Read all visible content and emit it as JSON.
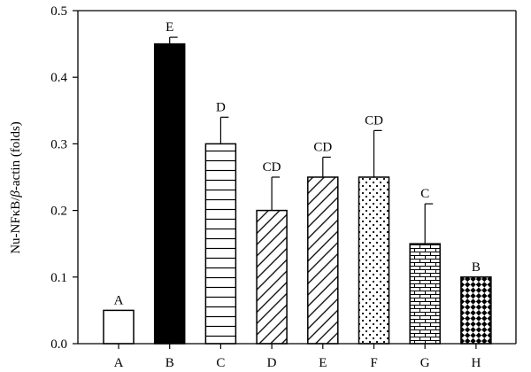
{
  "chart_data": {
    "type": "bar",
    "title": "",
    "xlabel": "",
    "ylabel_prefix": "Nu-NFκB/",
    "ylabel_beta": "β",
    "ylabel_suffix": "-actin (folds)",
    "ylim": [
      0,
      0.5
    ],
    "yticks": [
      "0.0",
      "0.1",
      "0.2",
      "0.3",
      "0.4",
      "0.5"
    ],
    "grid": false,
    "categories": [
      "A",
      "B",
      "C",
      "D",
      "E",
      "F",
      "G",
      "H"
    ],
    "values": [
      0.05,
      0.45,
      0.3,
      0.2,
      0.25,
      0.25,
      0.15,
      0.1
    ],
    "errors": [
      0,
      0.01,
      0.04,
      0.05,
      0.03,
      0.07,
      0.06,
      0
    ],
    "significance_labels": [
      "A",
      "E",
      "D",
      "CD",
      "CD",
      "CD",
      "C",
      "B"
    ],
    "bar_fills": [
      "empty",
      "solid-black",
      "horizontal-lines",
      "diagonal-lines",
      "diagonal-lines",
      "dots",
      "bricks",
      "checker-diamonds"
    ]
  }
}
